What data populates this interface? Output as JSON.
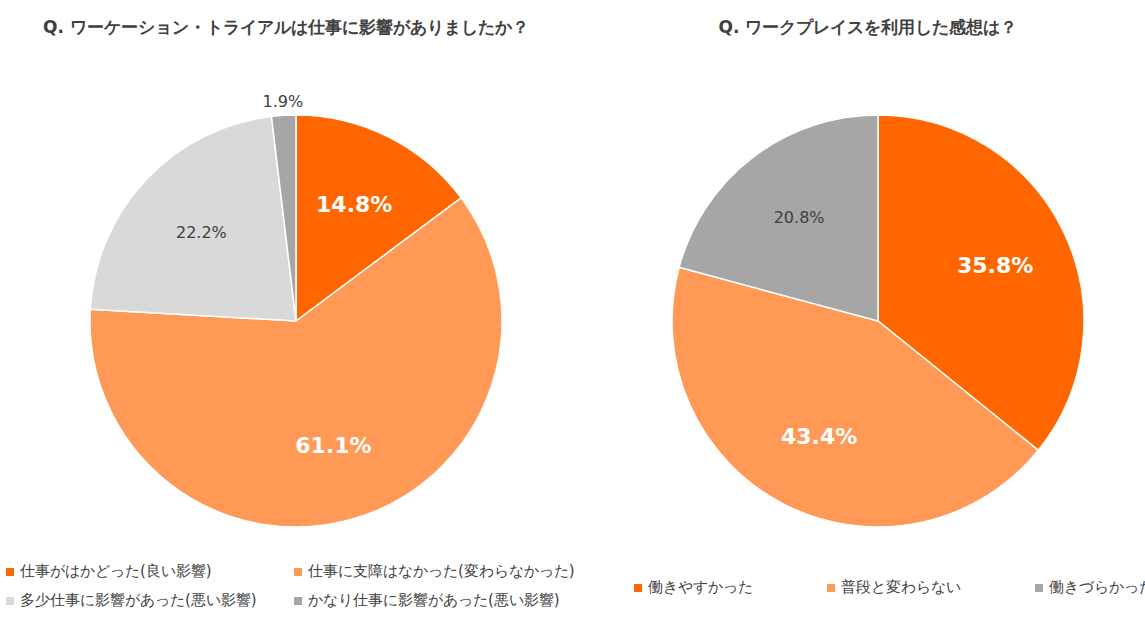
{
  "chart_data": [
    {
      "type": "pie",
      "title": "Q. ワーケーション・トライアルは仕事に影響がありましたか？",
      "categories": [
        "仕事がはかどった(良い影響)",
        "仕事に支障はなかった(変わらなかった)",
        "多少仕事に影響があった(悪い影響)",
        "かなり仕事に影響があった(悪い影響)"
      ],
      "values": [
        14.8,
        61.1,
        22.2,
        1.9
      ],
      "value_labels": [
        "14.8%",
        "61.1%",
        "22.2%",
        "1.9%"
      ],
      "colors": [
        "#ff6600",
        "#ff9955",
        "#d9d9d9",
        "#a6a6a6"
      ],
      "data_labels": true
    },
    {
      "type": "pie",
      "title": "Q. ワークプレイスを利用した感想は？",
      "categories": [
        "働きやすかった",
        "普段と変わらない",
        "働きづらかった"
      ],
      "values": [
        35.8,
        43.4,
        20.8
      ],
      "value_labels": [
        "35.8%",
        "43.4%",
        "20.8%"
      ],
      "colors": [
        "#ff6600",
        "#ff9955",
        "#a6a6a6"
      ],
      "data_labels": true
    }
  ]
}
